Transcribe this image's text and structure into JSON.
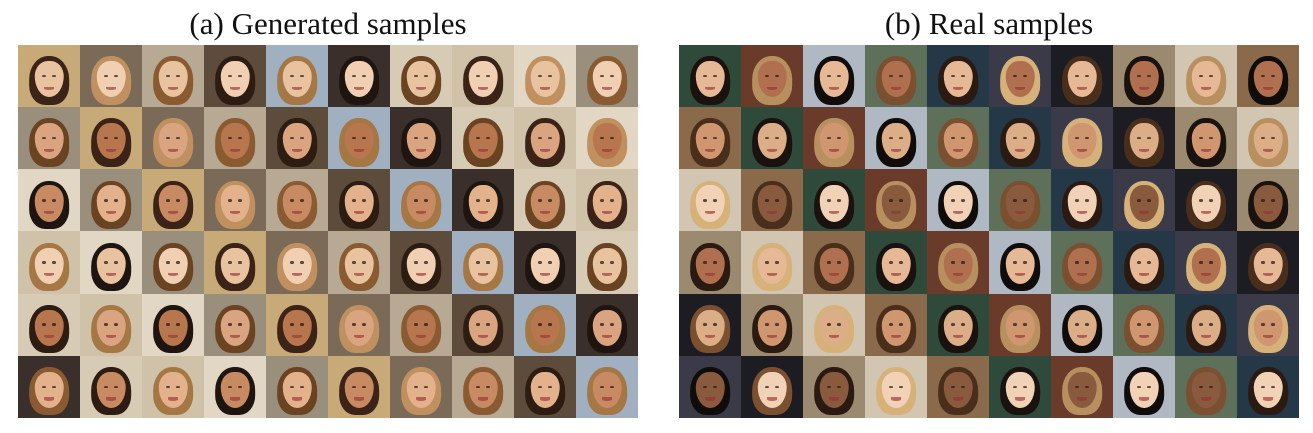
{
  "panels": [
    {
      "id": "a",
      "caption": "(a) Generated samples",
      "rows": 6,
      "cols": 10,
      "palette": {
        "backgrounds": [
          "#c8a978",
          "#5d4b3c",
          "#d8cbb6",
          "#9a8e7c",
          "#b7a993",
          "#3a2f2a",
          "#e2d6c4",
          "#7c6a58",
          "#a0b0c0",
          "#cfc2a8"
        ],
        "skins": [
          "#e9c2a0",
          "#d9a47f",
          "#c88a63",
          "#f0cfb2",
          "#b8764e",
          "#e3b28c"
        ],
        "hairs": [
          "#3b2417",
          "#6a4323",
          "#1e1410",
          "#a47745",
          "#2d1c12",
          "#8a5a32",
          "#c09060"
        ]
      }
    },
    {
      "id": "b",
      "caption": "(b) Real samples",
      "rows": 6,
      "cols": 10,
      "palette": {
        "backgrounds": [
          "#2f4a3a",
          "#5e6f5a",
          "#1c1c22",
          "#8a6a4a",
          "#b0b8c4",
          "#3b3a48",
          "#d2c6b2",
          "#6a3a2a",
          "#243848",
          "#9c8a70"
        ],
        "skins": [
          "#e6b896",
          "#cf9670",
          "#f2d2b6",
          "#b07050",
          "#dcae88",
          "#8a5a3e"
        ],
        "hairs": [
          "#1a120e",
          "#4a2e1c",
          "#d6b27a",
          "#2a1a12",
          "#7a5030",
          "#0f0c0a",
          "#b89060"
        ]
      }
    }
  ]
}
